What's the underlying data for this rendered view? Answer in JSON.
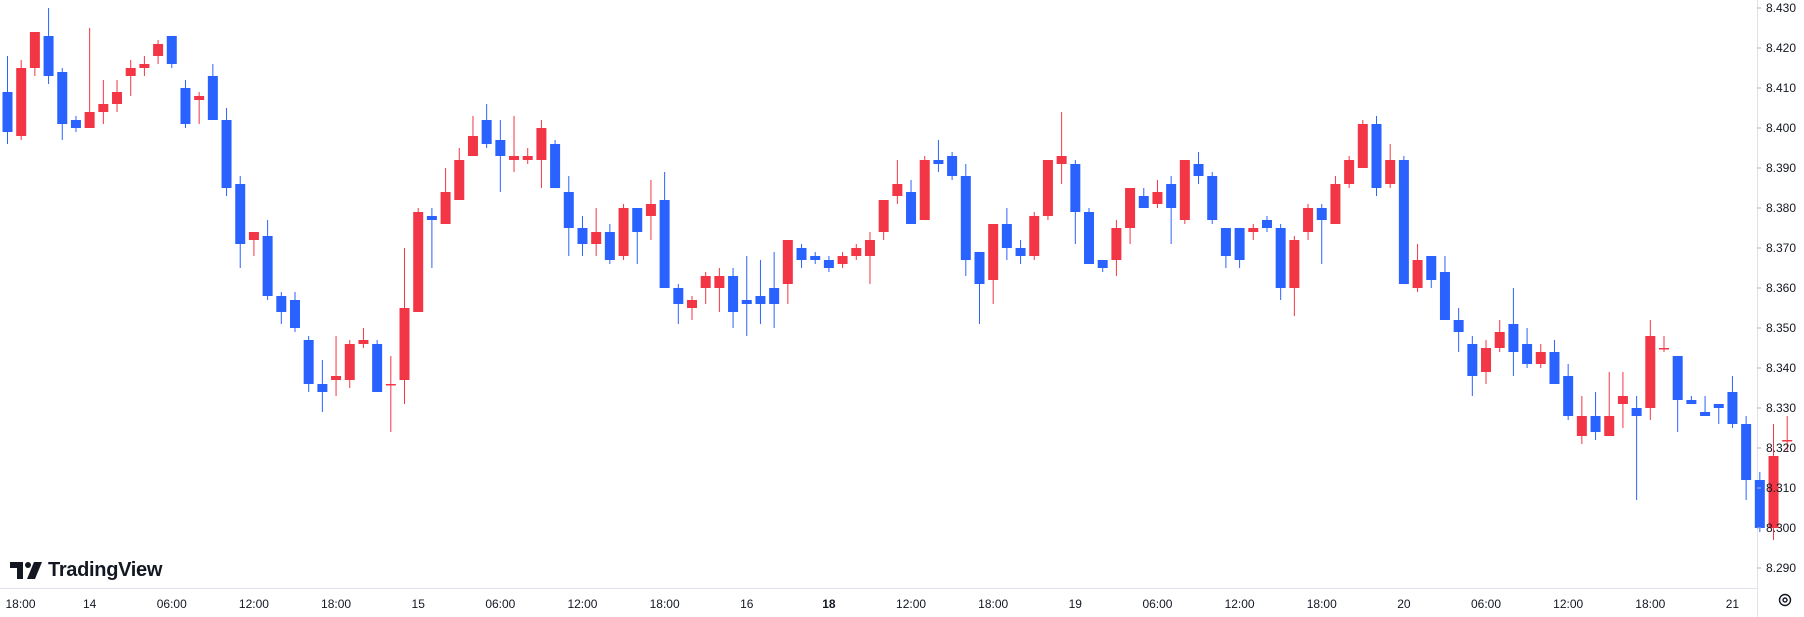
{
  "branding": {
    "name": "TradingView"
  },
  "colors": {
    "up": "#f23645",
    "down": "#2962ff",
    "text": "#131722",
    "axis": "#e0e3eb"
  },
  "icons": {
    "logo": "tradingview-logo-icon",
    "settings": "settings-gear-icon"
  },
  "chart_data": {
    "type": "candlestick",
    "ylim": [
      8.285,
      8.432
    ],
    "y_ticks": [
      "8.430",
      "8.420",
      "8.410",
      "8.400",
      "8.390",
      "8.380",
      "8.370",
      "8.360",
      "8.350",
      "8.340",
      "8.330",
      "8.320",
      "8.310",
      "8.300",
      "8.290"
    ],
    "x_ticks": [
      {
        "label": "18:00",
        "index": 0,
        "bold": false
      },
      {
        "label": "14",
        "index": 6,
        "bold": false
      },
      {
        "label": "06:00",
        "index": 12,
        "bold": false
      },
      {
        "label": "12:00",
        "index": 18,
        "bold": false
      },
      {
        "label": "18:00",
        "index": 24,
        "bold": false
      },
      {
        "label": "15",
        "index": 30,
        "bold": false
      },
      {
        "label": "06:00",
        "index": 36,
        "bold": false
      },
      {
        "label": "12:00",
        "index": 42,
        "bold": false
      },
      {
        "label": "18:00",
        "index": 48,
        "bold": false
      },
      {
        "label": "16",
        "index": 54,
        "bold": false
      },
      {
        "label": "18",
        "index": 60,
        "bold": true
      },
      {
        "label": "12:00",
        "index": 66,
        "bold": false
      },
      {
        "label": "18:00",
        "index": 72,
        "bold": false
      },
      {
        "label": "19",
        "index": 78,
        "bold": false
      },
      {
        "label": "06:00",
        "index": 84,
        "bold": false
      },
      {
        "label": "12:00",
        "index": 90,
        "bold": false
      },
      {
        "label": "18:00",
        "index": 96,
        "bold": false
      },
      {
        "label": "20",
        "index": 102,
        "bold": false
      },
      {
        "label": "06:00",
        "index": 108,
        "bold": false
      },
      {
        "label": "12:00",
        "index": 114,
        "bold": false
      },
      {
        "label": "18:00",
        "index": 120,
        "bold": false
      },
      {
        "label": "21",
        "index": 126,
        "bold": false
      }
    ],
    "candles": [
      [
        8.409,
        8.399,
        8.418,
        8.396
      ],
      [
        8.398,
        8.415,
        8.417,
        8.397
      ],
      [
        8.415,
        8.424,
        8.424,
        8.413
      ],
      [
        8.423,
        8.413,
        8.43,
        8.411
      ],
      [
        8.414,
        8.401,
        8.415,
        8.397
      ],
      [
        8.402,
        8.4,
        8.403,
        8.399
      ],
      [
        8.4,
        8.404,
        8.425,
        8.4
      ],
      [
        8.404,
        8.406,
        8.412,
        8.401
      ],
      [
        8.406,
        8.409,
        8.412,
        8.404
      ],
      [
        8.413,
        8.415,
        8.417,
        8.408
      ],
      [
        8.415,
        8.416,
        8.418,
        8.413
      ],
      [
        8.418,
        8.421,
        8.422,
        8.416
      ],
      [
        8.423,
        8.416,
        8.423,
        8.415
      ],
      [
        8.41,
        8.401,
        8.412,
        8.4
      ],
      [
        8.407,
        8.408,
        8.409,
        8.401
      ],
      [
        8.413,
        8.402,
        8.416,
        8.402
      ],
      [
        8.402,
        8.385,
        8.405,
        8.383
      ],
      [
        8.386,
        8.371,
        8.388,
        8.365
      ],
      [
        8.372,
        8.374,
        8.374,
        8.368
      ],
      [
        8.373,
        8.358,
        8.377,
        8.357
      ],
      [
        8.358,
        8.354,
        8.359,
        8.351
      ],
      [
        8.357,
        8.35,
        8.359,
        8.349
      ],
      [
        8.347,
        8.336,
        8.348,
        8.334
      ],
      [
        8.336,
        8.334,
        8.342,
        8.329
      ],
      [
        8.337,
        8.338,
        8.348,
        8.333
      ],
      [
        8.337,
        8.346,
        8.347,
        8.335
      ],
      [
        8.346,
        8.347,
        8.35,
        8.345
      ],
      [
        8.346,
        8.334,
        8.347,
        8.334
      ],
      [
        8.336,
        8.336,
        8.343,
        8.324
      ],
      [
        8.337,
        8.355,
        8.37,
        8.331
      ],
      [
        8.354,
        8.379,
        8.38,
        8.354
      ],
      [
        8.378,
        8.377,
        8.38,
        8.365
      ],
      [
        8.376,
        8.384,
        8.39,
        8.376
      ],
      [
        8.382,
        8.392,
        8.395,
        8.382
      ],
      [
        8.393,
        8.398,
        8.403,
        8.393
      ],
      [
        8.402,
        8.396,
        8.406,
        8.395
      ],
      [
        8.397,
        8.393,
        8.402,
        8.384
      ],
      [
        8.392,
        8.393,
        8.403,
        8.389
      ],
      [
        8.392,
        8.393,
        8.395,
        8.391
      ],
      [
        8.392,
        8.4,
        8.402,
        8.385
      ],
      [
        8.396,
        8.385,
        8.397,
        8.385
      ],
      [
        8.384,
        8.375,
        8.388,
        8.368
      ],
      [
        8.375,
        8.371,
        8.378,
        8.368
      ],
      [
        8.371,
        8.374,
        8.38,
        8.368
      ],
      [
        8.374,
        8.367,
        8.376,
        8.366
      ],
      [
        8.368,
        8.38,
        8.381,
        8.367
      ],
      [
        8.38,
        8.374,
        8.38,
        8.366
      ],
      [
        8.378,
        8.381,
        8.387,
        8.372
      ],
      [
        8.382,
        8.36,
        8.389,
        8.36
      ],
      [
        8.36,
        8.356,
        8.361,
        8.351
      ],
      [
        8.355,
        8.357,
        8.358,
        8.352
      ],
      [
        8.36,
        8.363,
        8.364,
        8.356
      ],
      [
        8.36,
        8.363,
        8.365,
        8.354
      ],
      [
        8.363,
        8.354,
        8.365,
        8.35
      ],
      [
        8.357,
        8.356,
        8.368,
        8.348
      ],
      [
        8.358,
        8.356,
        8.367,
        8.351
      ],
      [
        8.36,
        8.356,
        8.369,
        8.35
      ],
      [
        8.361,
        8.372,
        8.372,
        8.356
      ],
      [
        8.37,
        8.367,
        8.371,
        8.365
      ],
      [
        8.368,
        8.367,
        8.369,
        8.366
      ],
      [
        8.367,
        8.365,
        8.368,
        8.364
      ],
      [
        8.366,
        8.368,
        8.369,
        8.365
      ],
      [
        8.368,
        8.37,
        8.371,
        8.367
      ],
      [
        8.368,
        8.372,
        8.374,
        8.361
      ],
      [
        8.374,
        8.382,
        8.382,
        8.372
      ],
      [
        8.383,
        8.386,
        8.392,
        8.381
      ],
      [
        8.384,
        8.376,
        8.387,
        8.376
      ],
      [
        8.377,
        8.392,
        8.393,
        8.377
      ],
      [
        8.392,
        8.391,
        8.397,
        8.389
      ],
      [
        8.393,
        8.388,
        8.394,
        8.387
      ],
      [
        8.388,
        8.367,
        8.391,
        8.363
      ],
      [
        8.369,
        8.361,
        8.369,
        8.351
      ],
      [
        8.362,
        8.376,
        8.376,
        8.356
      ],
      [
        8.376,
        8.37,
        8.38,
        8.367
      ],
      [
        8.37,
        8.368,
        8.372,
        8.366
      ],
      [
        8.368,
        8.378,
        8.379,
        8.367
      ],
      [
        8.378,
        8.392,
        8.392,
        8.377
      ],
      [
        8.391,
        8.393,
        8.404,
        8.386
      ],
      [
        8.391,
        8.379,
        8.392,
        8.371
      ],
      [
        8.379,
        8.366,
        8.38,
        8.366
      ],
      [
        8.367,
        8.365,
        8.367,
        8.364
      ],
      [
        8.367,
        8.375,
        8.377,
        8.363
      ],
      [
        8.375,
        8.385,
        8.385,
        8.371
      ],
      [
        8.383,
        8.38,
        8.385,
        8.38
      ],
      [
        8.381,
        8.384,
        8.387,
        8.38
      ],
      [
        8.386,
        8.38,
        8.388,
        8.371
      ],
      [
        8.377,
        8.392,
        8.392,
        8.376
      ],
      [
        8.391,
        8.388,
        8.394,
        8.386
      ],
      [
        8.388,
        8.377,
        8.389,
        8.376
      ],
      [
        8.375,
        8.368,
        8.375,
        8.365
      ],
      [
        8.375,
        8.367,
        8.375,
        8.365
      ],
      [
        8.374,
        8.375,
        8.376,
        8.372
      ],
      [
        8.377,
        8.375,
        8.378,
        8.374
      ],
      [
        8.375,
        8.36,
        8.376,
        8.357
      ],
      [
        8.36,
        8.372,
        8.373,
        8.353
      ],
      [
        8.374,
        8.38,
        8.381,
        8.372
      ],
      [
        8.38,
        8.377,
        8.381,
        8.366
      ],
      [
        8.376,
        8.386,
        8.388,
        8.376
      ],
      [
        8.386,
        8.392,
        8.393,
        8.385
      ],
      [
        8.39,
        8.401,
        8.402,
        8.391
      ],
      [
        8.401,
        8.385,
        8.403,
        8.383
      ],
      [
        8.386,
        8.392,
        8.396,
        8.385
      ],
      [
        8.392,
        8.361,
        8.393,
        8.361
      ],
      [
        8.36,
        8.367,
        8.371,
        8.359
      ],
      [
        8.368,
        8.362,
        8.368,
        8.36
      ],
      [
        8.364,
        8.352,
        8.368,
        8.352
      ],
      [
        8.352,
        8.349,
        8.355,
        8.344
      ],
      [
        8.346,
        8.338,
        8.348,
        8.333
      ],
      [
        8.339,
        8.345,
        8.347,
        8.336
      ],
      [
        8.345,
        8.349,
        8.352,
        8.344
      ],
      [
        8.351,
        8.344,
        8.36,
        8.338
      ],
      [
        8.346,
        8.341,
        8.35,
        8.34
      ],
      [
        8.341,
        8.344,
        8.346,
        8.34
      ],
      [
        8.344,
        8.336,
        8.347,
        8.336
      ],
      [
        8.338,
        8.328,
        8.341,
        8.327
      ],
      [
        8.323,
        8.328,
        8.333,
        8.321
      ],
      [
        8.328,
        8.324,
        8.334,
        8.322
      ],
      [
        8.323,
        8.328,
        8.339,
        8.323
      ],
      [
        8.331,
        8.333,
        8.339,
        8.325
      ],
      [
        8.33,
        8.328,
        8.333,
        8.307
      ],
      [
        8.33,
        8.348,
        8.352,
        8.327
      ],
      [
        8.345,
        8.345,
        8.348,
        8.344
      ],
      [
        8.343,
        8.332,
        8.343,
        8.324
      ],
      [
        8.332,
        8.331,
        8.333,
        8.331
      ],
      [
        8.329,
        8.328,
        8.333,
        8.328
      ],
      [
        8.331,
        8.33,
        8.331,
        8.326
      ],
      [
        8.334,
        8.326,
        8.338,
        8.325
      ],
      [
        8.326,
        8.312,
        8.328,
        8.307
      ],
      [
        8.312,
        8.3,
        8.314,
        8.299
      ],
      [
        8.3,
        8.318,
        8.326,
        8.297
      ],
      [
        8.322,
        8.322,
        8.328,
        8.319
      ]
    ]
  }
}
